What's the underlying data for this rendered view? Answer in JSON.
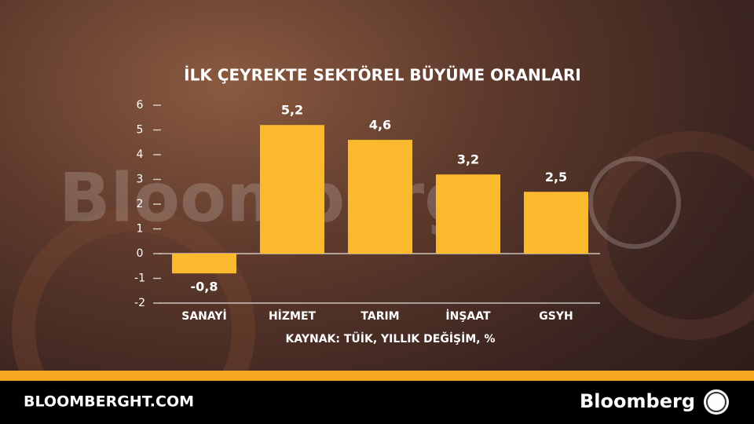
{
  "chart_data": {
    "type": "bar",
    "title": "İLK ÇEYREKTE SEKTÖREL BÜYÜME ORANLARI",
    "categories": [
      "SANAYİ",
      "HİZMET",
      "TARIM",
      "İNŞAAT",
      "GSYH"
    ],
    "values": [
      -0.8,
      5.2,
      4.6,
      3.2,
      2.5
    ],
    "value_labels": [
      "-0,8",
      "5,2",
      "4,6",
      "3,2",
      "2,5"
    ],
    "color": "#fbb92e",
    "ylim": [
      -2,
      6
    ],
    "yticks": [
      6,
      5,
      4,
      3,
      2,
      1,
      0,
      -1,
      -2
    ],
    "source": "KAYNAK: TÜİK, YILLIK DEĞİŞİM, %"
  },
  "watermark": "Bloomberg",
  "footer": {
    "site": "BLOOMBERGHT.COM",
    "brand": "Bloomberg"
  }
}
